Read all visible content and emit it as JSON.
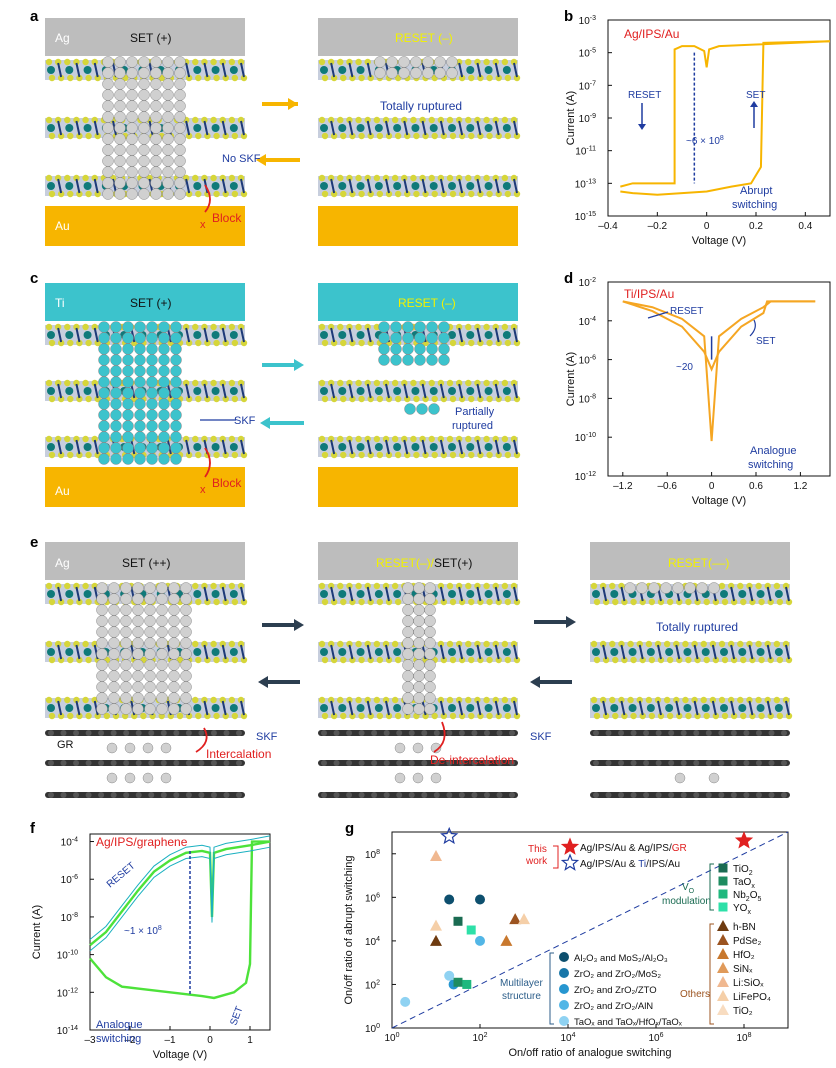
{
  "panels": {
    "a": {
      "letter": "a",
      "left_title": "SET (+)",
      "right_title": "RESET (–)",
      "top_electrode": "Ag",
      "bottom_electrode": "Au",
      "totally_ruptured": "Totally ruptured",
      "no_skf": "No SKF",
      "block": "Block",
      "x_mark": "x"
    },
    "b": {
      "letter": "b",
      "label": "Ag/IPS/Au",
      "reset": "RESET",
      "set": "SET",
      "ratio": "~6 × 10",
      "ratio_exp": "8",
      "note1": "Abrupt",
      "note2": "switching"
    },
    "c": {
      "letter": "c",
      "left_title": "SET (+)",
      "right_title": "RESET (–)",
      "top_electrode": "Ti",
      "bottom_electrode": "Au",
      "skf": "SKF",
      "partially1": "Partially",
      "partially2": "ruptured",
      "block": "Block",
      "x_mark": "x"
    },
    "d": {
      "letter": "d",
      "label": "Ti/IPS/Au",
      "reset": "RESET",
      "set": "SET",
      "ratio": "~20",
      "note1": "Analogue",
      "note2": "switching"
    },
    "e": {
      "letter": "e",
      "left_title": "SET (++)",
      "mid_title_a": "RESET(–)/",
      "mid_title_b": "SET(+)",
      "right_title": "RESET(––)",
      "top_electrode": "Ag",
      "gr": "GR",
      "skf": "SKF",
      "intercalation": "Intercalation",
      "deintercalation": "De-intercalation",
      "totally_ruptured": "Totally ruptured"
    },
    "f": {
      "letter": "f",
      "label": "Ag/IPS/graphene",
      "reset": "RESET",
      "set": "SET",
      "ratio": "~1 × 10",
      "ratio_exp": "8",
      "note1": "Analogue",
      "note2": "switching"
    },
    "g": {
      "letter": "g",
      "this_work1": "This",
      "this_work2": "work",
      "legend_star1_a": "Ag/IPS/Au & Ag/IPS/",
      "legend_star1_b": "GR",
      "legend_star2_a": "Ag/IPS/Au & ",
      "legend_star2_b": "Ti",
      "legend_star2_c": "/IPS/Au",
      "vo_modulation_a": "V",
      "vo_modulation_sub": "O",
      "vo_modulation_b": "modulation",
      "multilayer1": "Multilayer",
      "multilayer2": "structure",
      "others": "Others"
    }
  },
  "colors": {
    "abrupt": "#f7b500",
    "analogue": "#f5a623",
    "graphene": "#4de23a",
    "graphene_dark": "#1ab0c0",
    "ag_gray": "#bdbdbd",
    "ti_cyan": "#3cc3cc",
    "au_gold": "#f7b500",
    "blue_text": "#1f3ca0",
    "red_text": "#e02020"
  },
  "chart_data": [
    {
      "panel": "b",
      "type": "line",
      "xlabel": "Voltage (V)",
      "ylabel": "Current (A)",
      "xlim": [
        -0.4,
        0.5
      ],
      "ylim_log10": [
        -15,
        -3
      ],
      "x_ticks": [
        "–0.4",
        "–0.2",
        "0",
        "0.2",
        "0.4"
      ],
      "y_ticks": [
        "10",
        "10",
        "10",
        "10",
        "10",
        "10",
        "10"
      ],
      "y_tick_exps": [
        "-15",
        "-13",
        "-11",
        "-9",
        "-7",
        "-5",
        "-3"
      ],
      "series": [
        {
          "x": [
            -0.35,
            -0.3,
            -0.2,
            -0.15,
            -0.13,
            -0.13,
            -0.1,
            -0.05,
            -0.01,
            0.0,
            0.01,
            0.05,
            0.2,
            0.5
          ],
          "log10y": [
            -13.2,
            -13.0,
            -13.0,
            -13.0,
            -13.0,
            -4.8,
            -4.6,
            -4.6,
            -4.9,
            -5.9,
            -4.8,
            -4.6,
            -4.5,
            -4.3
          ]
        },
        {
          "x": [
            -0.35,
            -0.3,
            -0.2,
            -0.1,
            0.0,
            0.1,
            0.18,
            0.2,
            0.22,
            0.23,
            0.5
          ],
          "log10y": [
            -13.5,
            -13.6,
            -13.7,
            -13.6,
            -13.5,
            -13.2,
            -13.0,
            -12.5,
            -12.0,
            -4.4,
            -4.3
          ]
        }
      ]
    },
    {
      "panel": "d",
      "type": "line",
      "xlabel": "Voltage (V)",
      "ylabel": "Current (A)",
      "xlim": [
        -1.4,
        1.6
      ],
      "ylim_log10": [
        -12,
        -2
      ],
      "x_ticks": [
        "–1.2",
        "–0.6",
        "0",
        "0.6",
        "1.2"
      ],
      "y_ticks": [
        "10",
        "10",
        "10",
        "10",
        "10",
        "10"
      ],
      "y_tick_exps": [
        "-12",
        "-10",
        "-8",
        "-6",
        "-4",
        "-2"
      ],
      "series": [
        {
          "x": [
            -1.2,
            -0.8,
            -0.4,
            -0.1,
            0.0,
            0.1,
            0.4,
            0.7,
            0.8,
            1.0,
            1.4
          ],
          "log10y": [
            -3.0,
            -3.3,
            -3.9,
            -4.8,
            -10.2,
            -4.8,
            -3.9,
            -3.3,
            -3.0,
            -3.0,
            -3.0
          ]
        },
        {
          "x": [
            -1.2,
            -0.8,
            -0.4,
            -0.1,
            0.0,
            0.1,
            0.4,
            0.7,
            0.75,
            1.4
          ],
          "log10y": [
            -3.0,
            -3.5,
            -4.3,
            -5.6,
            -6.5,
            -5.6,
            -4.3,
            -3.6,
            -3.0,
            -3.0
          ]
        }
      ]
    },
    {
      "panel": "f",
      "type": "line",
      "xlabel": "Voltage (V)",
      "ylabel": "Current (A)",
      "xlim": [
        -3,
        1.5
      ],
      "ylim_log10": [
        -14,
        -3.6
      ],
      "x_ticks": [
        "–3",
        "–2",
        "–1",
        "0",
        "1"
      ],
      "y_ticks": [
        "10",
        "10",
        "10",
        "10",
        "10",
        "10"
      ],
      "y_tick_exps": [
        "-14",
        "-12",
        "-10",
        "-8",
        "-6",
        "-4"
      ],
      "series": [
        {
          "x": [
            -3,
            -2.6,
            -2.2,
            -1.8,
            -1.4,
            -1.0,
            -0.6,
            -0.2,
            0.0,
            0.05,
            0.1,
            0.4,
            1.0,
            1.5
          ],
          "log10y": [
            -9.5,
            -8.8,
            -7.7,
            -6.6,
            -5.6,
            -5.0,
            -4.6,
            -4.5,
            -4.6,
            -8.0,
            -4.6,
            -4.4,
            -4.2,
            -4.0
          ]
        },
        {
          "x": [
            -3,
            -2.6,
            -2.2,
            -1.8,
            -1.4,
            -1.0,
            -0.6,
            -0.2,
            0.1,
            0.6,
            0.9,
            1.0,
            1.05,
            1.5
          ],
          "log10y": [
            -10.2,
            -11.2,
            -11.7,
            -11.8,
            -11.9,
            -12.0,
            -12.1,
            -12.2,
            -12.3,
            -12.0,
            -11.5,
            -10.5,
            -4.0,
            -4.0
          ]
        }
      ]
    },
    {
      "panel": "g",
      "type": "scatter",
      "xlabel": "On/off ratio of analogue switching",
      "ylabel": "On/off ratio of abrupt switching",
      "x_log10": [
        0,
        9
      ],
      "y_log10": [
        0,
        9
      ],
      "x_ticks": [
        "10",
        "10",
        "10",
        "10",
        "10"
      ],
      "x_tick_exps": [
        "0",
        "2",
        "4",
        "6",
        "8"
      ],
      "y_ticks": [
        "10",
        "10",
        "10",
        "10",
        "10"
      ],
      "y_tick_exps": [
        "0",
        "2",
        "4",
        "6",
        "8"
      ],
      "legend_vo": [
        {
          "name_a": "TiO",
          "sub": "2",
          "color": "#1a6b52",
          "marker": "square"
        },
        {
          "name_a": "TaO",
          "sub": "x",
          "color": "#1e8c60",
          "marker": "square"
        },
        {
          "name_a": "Nb",
          "sub": "2",
          "name_b": "O",
          "sub2": "5",
          "color": "#1fb87e",
          "marker": "square"
        },
        {
          "name_a": "YO",
          "sub": "x",
          "color": "#2de0a8",
          "marker": "square"
        }
      ],
      "legend_multilayer": [
        {
          "text": "Al₂O₃ and MoS₂/Al₂O₃",
          "color": "#0d4f6e"
        },
        {
          "text": "ZrO₂ and ZrO₂/MoS₂",
          "color": "#1776a8"
        },
        {
          "text": "ZrO₂ and ZrO₂/ZTO",
          "color": "#2696d0"
        },
        {
          "text": "ZrO₂ and ZrO₂/AlN",
          "color": "#52b6e6"
        },
        {
          "text": "TaOₓ and TaOₓ/HfOₓ/TaOₓ",
          "color": "#8fd2f2"
        }
      ],
      "legend_others": [
        {
          "text": "h-BN",
          "color": "#6e3b10"
        },
        {
          "text": "PdSe₂",
          "color": "#9c5420"
        },
        {
          "text": "HfO₂",
          "color": "#c8782e"
        },
        {
          "text": "SiNₓ",
          "color": "#e09a5a"
        },
        {
          "text": "Li:SiOₓ",
          "color": "#f0b890"
        },
        {
          "text": "LiFePO₄",
          "color": "#f5cfa8"
        },
        {
          "text": "TiO₂",
          "color": "#f8dcc0"
        }
      ],
      "points": [
        {
          "x": 1.3,
          "y": 5.9,
          "color": "#0d4f6e",
          "marker": "circle"
        },
        {
          "x": 2.0,
          "y": 5.9,
          "color": "#0d4f6e",
          "marker": "circle"
        },
        {
          "x": 1.0,
          "y": 7.9,
          "color": "#f0b890",
          "marker": "triangle"
        },
        {
          "x": 1.0,
          "y": 4.0,
          "color": "#6e3b10",
          "marker": "triangle"
        },
        {
          "x": 1.0,
          "y": 4.7,
          "color": "#f5cfa8",
          "marker": "triangle"
        },
        {
          "x": 1.5,
          "y": 4.9,
          "color": "#1a6b52",
          "marker": "square"
        },
        {
          "x": 1.8,
          "y": 4.5,
          "color": "#2de0a8",
          "marker": "square"
        },
        {
          "x": 2.0,
          "y": 4.0,
          "color": "#52b6e6",
          "marker": "circle"
        },
        {
          "x": 2.6,
          "y": 4.0,
          "color": "#c8782e",
          "marker": "triangle"
        },
        {
          "x": 2.8,
          "y": 5.0,
          "color": "#9c5420",
          "marker": "triangle"
        },
        {
          "x": 3.0,
          "y": 5.0,
          "color": "#f5cfa8",
          "marker": "triangle"
        },
        {
          "x": 1.3,
          "y": 2.4,
          "color": "#8fd2f2",
          "marker": "circle"
        },
        {
          "x": 1.4,
          "y": 2.0,
          "color": "#2696d0",
          "marker": "circle"
        },
        {
          "x": 1.5,
          "y": 2.1,
          "color": "#1e8c60",
          "marker": "square"
        },
        {
          "x": 1.7,
          "y": 2.0,
          "color": "#1fb87e",
          "marker": "square"
        },
        {
          "x": 0.3,
          "y": 1.2,
          "color": "#8fd2f2",
          "marker": "circle"
        },
        {
          "x": 1.3,
          "y": 8.8,
          "color": "#1f3ca0",
          "marker": "star-open"
        },
        {
          "x": 8.0,
          "y": 8.6,
          "color": "#e02020",
          "marker": "star"
        }
      ],
      "diagonal": {
        "x": [
          0,
          9
        ],
        "y": [
          0,
          9
        ]
      }
    }
  ]
}
